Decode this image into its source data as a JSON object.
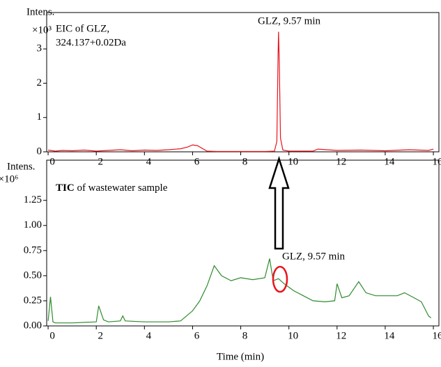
{
  "chart_data": [
    {
      "type": "line",
      "title": "EIC of GLZ,",
      "subtitle": "324.137+0.02Da",
      "y_label": "Intens.",
      "y_unit": "×10³",
      "annotations": [
        "GLZ, 9.57 min"
      ],
      "x": [
        0,
        0.3,
        0.6,
        1.0,
        1.5,
        2.0,
        2.5,
        3.0,
        3.5,
        4.0,
        4.5,
        5.0,
        5.5,
        5.8,
        6.0,
        6.2,
        6.4,
        6.6,
        7.0,
        8.0,
        9.0,
        9.4,
        9.5,
        9.55,
        9.57,
        9.6,
        9.65,
        9.75,
        10.0,
        11.0,
        11.2,
        12.0,
        13.0,
        14.0,
        15.0,
        15.8,
        16.0
      ],
      "series": [
        {
          "name": "EIC",
          "color": "#e8141c",
          "values": [
            0.05,
            0.02,
            0.04,
            0.03,
            0.05,
            0.02,
            0.04,
            0.06,
            0.03,
            0.05,
            0.04,
            0.06,
            0.09,
            0.14,
            0.2,
            0.18,
            0.1,
            0.02,
            0.01,
            0.01,
            0.01,
            0.02,
            0.3,
            2.8,
            3.5,
            2.6,
            0.4,
            0.05,
            0.02,
            0.02,
            0.08,
            0.04,
            0.05,
            0.03,
            0.06,
            0.04,
            0.08
          ]
        }
      ],
      "xlim": [
        -0.06,
        16.23
      ],
      "ylim": [
        0,
        4.06
      ],
      "xticks": [
        0,
        2,
        4,
        6,
        8,
        10,
        12,
        14,
        16
      ],
      "yticks": [
        0,
        1,
        2,
        3
      ]
    },
    {
      "type": "line",
      "title": "TIC",
      "subtitle": "of wastewater sample",
      "y_label": "Intens.",
      "y_unit": "×10⁶",
      "x_label": "Time (min)",
      "annotations": [
        "GLZ, 9.57 min"
      ],
      "x": [
        0,
        0.1,
        0.2,
        0.3,
        1.0,
        2.0,
        2.1,
        2.3,
        2.5,
        3.0,
        3.1,
        3.2,
        4.0,
        5.0,
        5.5,
        6.0,
        6.3,
        6.6,
        6.9,
        7.2,
        7.6,
        8.0,
        8.5,
        9.0,
        9.2,
        9.35,
        9.57,
        9.8,
        10.2,
        10.6,
        11.0,
        11.5,
        11.9,
        12.0,
        12.2,
        12.5,
        12.9,
        13.2,
        13.6,
        14.0,
        14.5,
        14.8,
        15.2,
        15.5,
        15.8,
        15.9
      ],
      "series": [
        {
          "name": "TIC",
          "color": "#2e8b2e",
          "values": [
            0.05,
            0.29,
            0.04,
            0.03,
            0.03,
            0.04,
            0.2,
            0.06,
            0.04,
            0.05,
            0.1,
            0.05,
            0.04,
            0.04,
            0.05,
            0.15,
            0.25,
            0.4,
            0.6,
            0.5,
            0.45,
            0.48,
            0.46,
            0.48,
            0.67,
            0.45,
            0.47,
            0.42,
            0.35,
            0.3,
            0.25,
            0.24,
            0.25,
            0.42,
            0.28,
            0.3,
            0.44,
            0.33,
            0.3,
            0.3,
            0.3,
            0.33,
            0.28,
            0.24,
            0.1,
            0.08
          ]
        }
      ],
      "xlim": [
        -0.06,
        16.23
      ],
      "ylim": [
        0,
        1.65
      ],
      "xticks": [
        0,
        2,
        4,
        6,
        8,
        10,
        12,
        14,
        16
      ],
      "yticks": [
        {
          "value": 0,
          "label": "0.00"
        },
        {
          "value": 0.25,
          "label": "0.25"
        },
        {
          "value": 0.5,
          "label": "0.50"
        },
        {
          "value": 0.75,
          "label": "0.75"
        },
        {
          "value": 1,
          "label": "1.00"
        },
        {
          "value": 1.25,
          "label": "1.25"
        }
      ]
    }
  ]
}
